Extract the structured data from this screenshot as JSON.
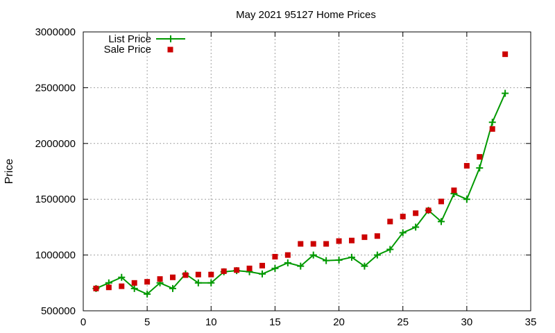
{
  "chart_data": {
    "type": "line",
    "title": "May 2021 95127 Home Prices",
    "xlabel": "",
    "ylabel": "Price",
    "xlim": [
      0,
      35
    ],
    "ylim": [
      500000,
      3000000
    ],
    "xticks": [
      0,
      5,
      10,
      15,
      20,
      25,
      30,
      35
    ],
    "yticks": [
      500000,
      1000000,
      1500000,
      2000000,
      2500000,
      3000000
    ],
    "grid": true,
    "legend_position": "top-left",
    "series": [
      {
        "name": "List Price",
        "style": "lines+points",
        "color": "#009900",
        "x": [
          1,
          2,
          3,
          4,
          5,
          6,
          7,
          8,
          9,
          10,
          11,
          12,
          13,
          14,
          15,
          16,
          17,
          18,
          19,
          20,
          21,
          22,
          23,
          24,
          25,
          26,
          27,
          28,
          29,
          30,
          31,
          32,
          33
        ],
        "y": [
          700000,
          750000,
          800000,
          700000,
          650000,
          750000,
          700000,
          830000,
          750000,
          750000,
          850000,
          860000,
          850000,
          830000,
          880000,
          930000,
          900000,
          1000000,
          950000,
          955000,
          980000,
          900000,
          1000000,
          1050000,
          1200000,
          1250000,
          1400000,
          1300000,
          1550000,
          1500000,
          1780000,
          2190000,
          2450000
        ]
      },
      {
        "name": "Sale Price",
        "style": "points",
        "color": "#cc0000",
        "x": [
          1,
          2,
          3,
          4,
          5,
          6,
          7,
          8,
          9,
          10,
          11,
          12,
          13,
          14,
          15,
          16,
          17,
          18,
          19,
          20,
          21,
          22,
          23,
          24,
          25,
          26,
          27,
          28,
          29,
          30,
          31,
          32,
          33
        ],
        "y": [
          700000,
          710000,
          720000,
          750000,
          760000,
          785000,
          800000,
          820000,
          825000,
          825000,
          855000,
          865000,
          880000,
          905000,
          985000,
          1000000,
          1100000,
          1100000,
          1100000,
          1125000,
          1130000,
          1160000,
          1170000,
          1300000,
          1345000,
          1375000,
          1400000,
          1480000,
          1580000,
          1800000,
          1880000,
          2130000,
          2800000
        ]
      }
    ]
  }
}
